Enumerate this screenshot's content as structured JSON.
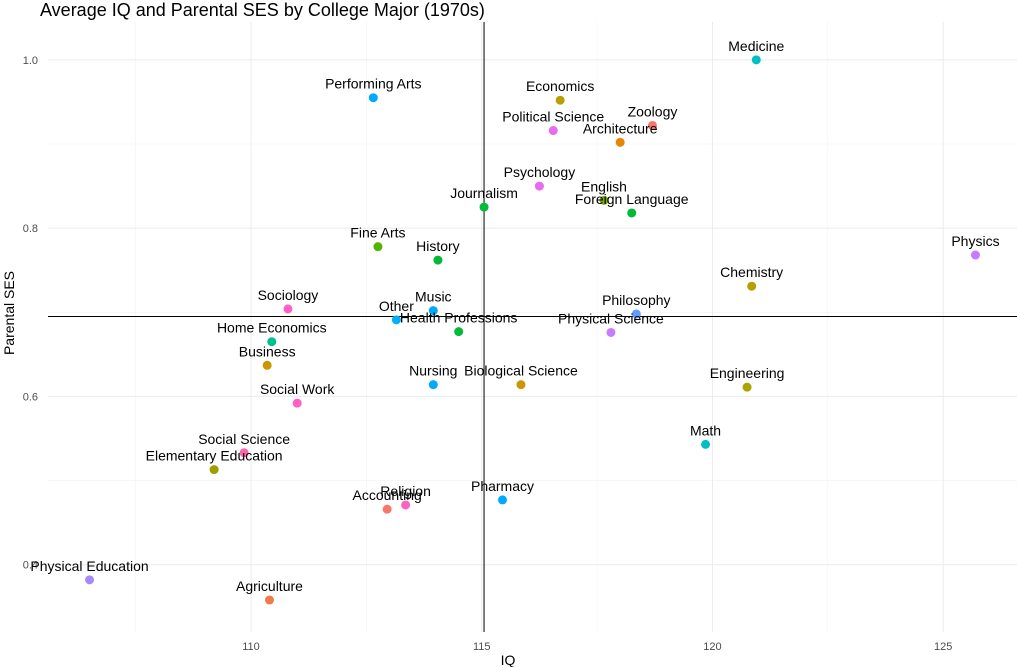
{
  "chart_data": {
    "type": "scatter",
    "title": "Average IQ and Parental SES by College Major (1970s)",
    "xlabel": "IQ",
    "ylabel": "Parental SES",
    "xlim": [
      105.6,
      126.6
    ],
    "ylim": [
      0.32,
      1.045
    ],
    "x_ticks": [
      110,
      115,
      120,
      125
    ],
    "y_ticks": [
      0.4,
      0.6,
      0.8,
      1.0
    ],
    "x_tick_labels": [
      "110",
      "115",
      "120",
      "125"
    ],
    "y_tick_labels": [
      "0.4",
      "0.6",
      "0.8",
      "1.0"
    ],
    "reference_lines": {
      "x": 115.05,
      "y": 0.695
    },
    "grid": true,
    "points": [
      {
        "label": "Medicine",
        "x": 120.95,
        "y": 1.0,
        "color": "#00BFC4"
      },
      {
        "label": "Performing Arts",
        "x": 112.65,
        "y": 0.955,
        "color": "#00A9FF"
      },
      {
        "label": "Economics",
        "x": 116.7,
        "y": 0.952,
        "color": "#B79F00"
      },
      {
        "label": "Political Science",
        "x": 116.55,
        "y": 0.916,
        "color": "#E76BF3"
      },
      {
        "label": "Zoology",
        "x": 118.7,
        "y": 0.922,
        "color": "#F8766D"
      },
      {
        "label": "Architecture",
        "x": 118.0,
        "y": 0.902,
        "color": "#E58700"
      },
      {
        "label": "Psychology",
        "x": 116.25,
        "y": 0.85,
        "color": "#E76BF3"
      },
      {
        "label": "English",
        "x": 117.65,
        "y": 0.833,
        "color": "#7CAE00"
      },
      {
        "label": "Journalism",
        "x": 115.05,
        "y": 0.825,
        "color": "#00BA38"
      },
      {
        "label": "Foreign Language",
        "x": 118.25,
        "y": 0.818,
        "color": "#00BA38"
      },
      {
        "label": "Fine Arts",
        "x": 112.75,
        "y": 0.778,
        "color": "#53B400"
      },
      {
        "label": "History",
        "x": 114.05,
        "y": 0.762,
        "color": "#00BA38"
      },
      {
        "label": "Physics",
        "x": 125.7,
        "y": 0.768,
        "color": "#C77CFF"
      },
      {
        "label": "Chemistry",
        "x": 120.85,
        "y": 0.731,
        "color": "#B79F00"
      },
      {
        "label": "Sociology",
        "x": 110.8,
        "y": 0.704,
        "color": "#FF61C3"
      },
      {
        "label": "Music",
        "x": 113.95,
        "y": 0.702,
        "color": "#00A9FF"
      },
      {
        "label": "Philosophy",
        "x": 118.35,
        "y": 0.698,
        "color": "#619CFF"
      },
      {
        "label": "Other",
        "x": 113.15,
        "y": 0.691,
        "color": "#00B0F6"
      },
      {
        "label": "Health Professions",
        "x": 114.5,
        "y": 0.677,
        "color": "#00BA38"
      },
      {
        "label": "Physical Science",
        "x": 117.8,
        "y": 0.676,
        "color": "#C77CFF"
      },
      {
        "label": "Home Economics",
        "x": 110.45,
        "y": 0.665,
        "color": "#00C08B"
      },
      {
        "label": "Business",
        "x": 110.35,
        "y": 0.637,
        "color": "#CD9600"
      },
      {
        "label": "Nursing",
        "x": 113.95,
        "y": 0.614,
        "color": "#00A9FF"
      },
      {
        "label": "Biological Science",
        "x": 115.85,
        "y": 0.614,
        "color": "#CD9600"
      },
      {
        "label": "Engineering",
        "x": 120.75,
        "y": 0.611,
        "color": "#ABA300"
      },
      {
        "label": "Social Work",
        "x": 111.0,
        "y": 0.592,
        "color": "#FF61C3"
      },
      {
        "label": "Math",
        "x": 119.85,
        "y": 0.543,
        "color": "#00BFC4"
      },
      {
        "label": "Social Science",
        "x": 109.85,
        "y": 0.533,
        "color": "#FF64B0"
      },
      {
        "label": "Elementary Education",
        "x": 109.2,
        "y": 0.513,
        "color": "#9E9E00"
      },
      {
        "label": "Pharmacy",
        "x": 115.45,
        "y": 0.477,
        "color": "#00A9FF"
      },
      {
        "label": "Religion",
        "x": 113.35,
        "y": 0.471,
        "color": "#FF61C3"
      },
      {
        "label": "Accounting",
        "x": 112.95,
        "y": 0.466,
        "color": "#F8766D"
      },
      {
        "label": "Physical Education",
        "x": 106.5,
        "y": 0.382,
        "color": "#A58AFF"
      },
      {
        "label": "Agriculture",
        "x": 110.4,
        "y": 0.358,
        "color": "#F07A4A"
      }
    ]
  }
}
